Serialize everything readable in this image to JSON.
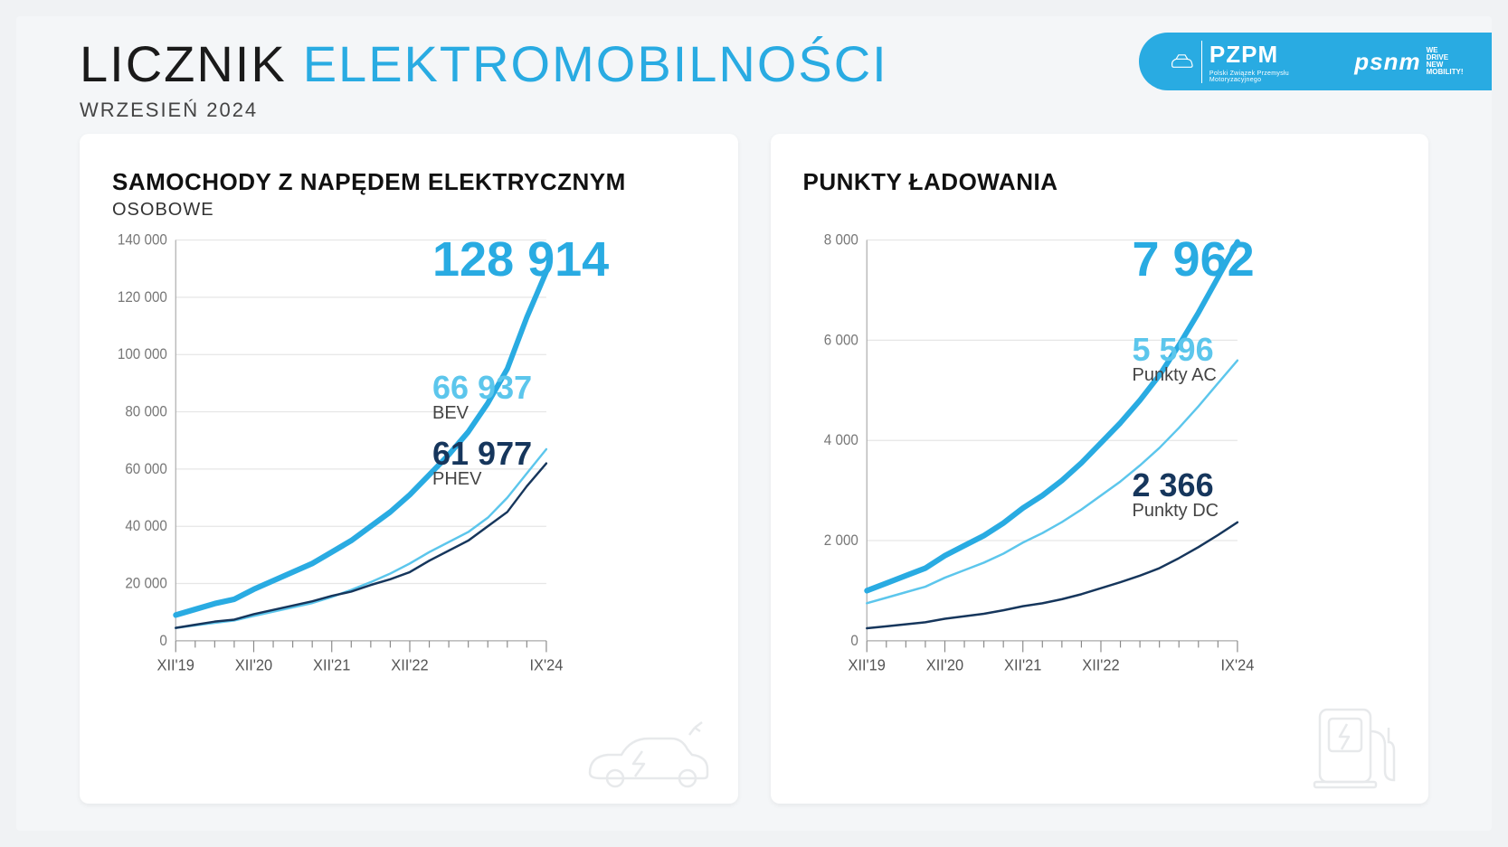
{
  "header": {
    "title_black": "LICZNIK",
    "title_blue": "ELEKTROMOBILNOŚCI",
    "subtitle": "WRZESIEŃ 2024",
    "badge": {
      "pzpm": "PZPM",
      "pzpm_sub": "Polski Związek Przemysłu Motoryzacyjnego",
      "psnm": "psnm",
      "psnm_sub1": "WE",
      "psnm_sub2": "DRIVE",
      "psnm_sub3": "NEW MOBILITY!"
    }
  },
  "colors": {
    "accent": "#29abe2",
    "accent_light": "#5cc6ec",
    "navy": "#16365c",
    "grid": "#e6e6e6",
    "axis": "#aaaaaa",
    "text_muted": "#777777",
    "card_bg": "#ffffff",
    "page_bg": "#f4f6f8"
  },
  "left_chart": {
    "title": "SAMOCHODY Z NAPĘDEM ELEKTRYCZNYM",
    "subtitle": "OSOBOWE",
    "type": "line",
    "y": {
      "min": 0,
      "max": 140000,
      "step": 20000
    },
    "x_labels": [
      "XII'19",
      "XII'20",
      "XII'21",
      "XII'22",
      "IX'24"
    ],
    "x_major_idx": [
      0,
      4,
      8,
      12,
      19
    ],
    "n_ticks": 20,
    "series": {
      "total": {
        "color": "#29abe2",
        "stroke_width": 5,
        "values": [
          9000,
          11000,
          13000,
          14500,
          18000,
          21000,
          24000,
          27000,
          31000,
          35000,
          40000,
          45000,
          51000,
          58000,
          65000,
          73000,
          83000,
          95000,
          113000,
          128914
        ],
        "end_label": "128 914"
      },
      "bev": {
        "color": "#5cc6ec",
        "stroke_width": 2,
        "values": [
          4500,
          5400,
          6300,
          7100,
          8700,
          10200,
          11700,
          13200,
          15300,
          17800,
          20500,
          23500,
          27000,
          31000,
          34500,
          38000,
          43000,
          50000,
          58500,
          66937
        ],
        "end_label": "66 937",
        "end_sub": "BEV"
      },
      "phev": {
        "color": "#16365c",
        "stroke_width": 2,
        "values": [
          4500,
          5600,
          6700,
          7400,
          9300,
          10800,
          12300,
          13800,
          15700,
          17200,
          19500,
          21500,
          24000,
          28000,
          31500,
          35000,
          40000,
          45000,
          54000,
          61977
        ],
        "end_label": "61 977",
        "end_sub": "PHEV"
      }
    }
  },
  "right_chart": {
    "title": "PUNKTY ŁADOWANIA",
    "type": "line",
    "y": {
      "min": 0,
      "max": 8000,
      "step": 2000
    },
    "x_labels": [
      "XII'19",
      "XII'20",
      "XII'21",
      "XII'22",
      "IX'24"
    ],
    "x_major_idx": [
      0,
      4,
      8,
      12,
      19
    ],
    "n_ticks": 20,
    "series": {
      "total": {
        "color": "#29abe2",
        "stroke_width": 5,
        "values": [
          1000,
          1150,
          1300,
          1450,
          1700,
          1900,
          2100,
          2350,
          2650,
          2900,
          3200,
          3550,
          3950,
          4350,
          4800,
          5300,
          5900,
          6550,
          7250,
          7962
        ],
        "end_label": "7 962"
      },
      "ac": {
        "color": "#5cc6ec",
        "stroke_width": 2,
        "values": [
          750,
          860,
          970,
          1080,
          1260,
          1410,
          1560,
          1740,
          1960,
          2150,
          2370,
          2620,
          2900,
          3180,
          3500,
          3850,
          4250,
          4680,
          5140,
          5596
        ],
        "end_label": "5 596",
        "end_sub": "Punkty AC"
      },
      "dc": {
        "color": "#16365c",
        "stroke_width": 2,
        "values": [
          250,
          290,
          330,
          370,
          440,
          490,
          540,
          610,
          690,
          750,
          830,
          930,
          1050,
          1170,
          1300,
          1450,
          1650,
          1870,
          2110,
          2366
        ],
        "end_label": "2 366",
        "end_sub": "Punkty DC"
      }
    }
  }
}
